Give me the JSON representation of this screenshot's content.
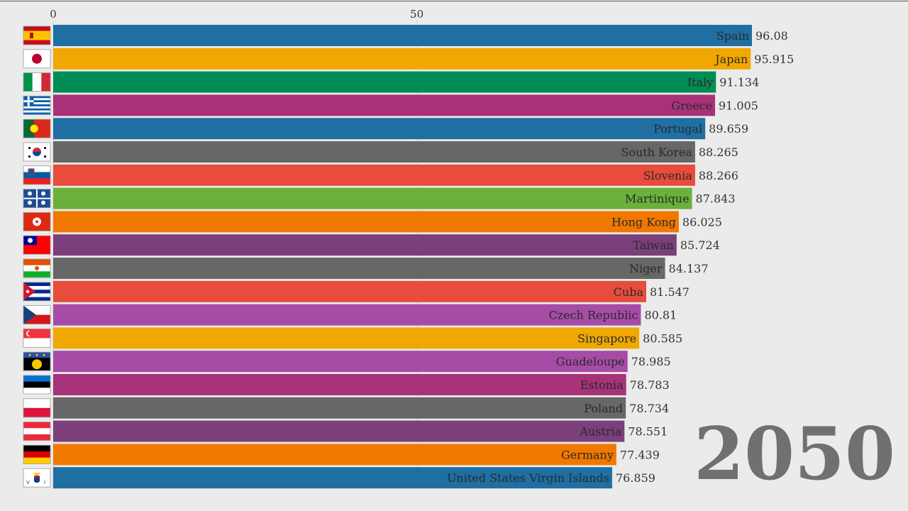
{
  "chart_data": {
    "type": "bar",
    "orientation": "horizontal",
    "year": "2050",
    "x_ticks": [
      0,
      50
    ],
    "xlim": [
      0,
      96.08
    ],
    "bars": [
      {
        "name": "Spain",
        "value": 96.08,
        "value_label": "96.08",
        "color": "#1f6fa3",
        "flag": "flag-spain-icon"
      },
      {
        "name": "Japan",
        "value": 95.915,
        "value_label": "95.915",
        "color": "#f0a800",
        "flag": "flag-japan-icon"
      },
      {
        "name": "Italy",
        "value": 91.134,
        "value_label": "91.134",
        "color": "#008d55",
        "flag": "flag-italy-icon"
      },
      {
        "name": "Greece",
        "value": 91.005,
        "value_label": "91.005",
        "color": "#a83279",
        "flag": "flag-greece-icon"
      },
      {
        "name": "Portugal",
        "value": 89.659,
        "value_label": "89.659",
        "color": "#1f6fa3",
        "flag": "flag-portugal-icon"
      },
      {
        "name": "South Korea",
        "value": 88.265,
        "value_label": "88.265",
        "color": "#676767",
        "flag": "flag-south-korea-icon"
      },
      {
        "name": "Slovenia",
        "value": 88.266,
        "value_label": "88.266",
        "color": "#e74c3c",
        "flag": "flag-slovenia-icon"
      },
      {
        "name": "Martinique",
        "value": 87.843,
        "value_label": "87.843",
        "color": "#6ab03a",
        "flag": "flag-martinique-icon"
      },
      {
        "name": "Hong Kong",
        "value": 86.025,
        "value_label": "86.025",
        "color": "#f07800",
        "flag": "flag-hong-kong-icon"
      },
      {
        "name": "Taiwan",
        "value": 85.724,
        "value_label": "85.724",
        "color": "#7b3f7b",
        "flag": "flag-taiwan-icon"
      },
      {
        "name": "Niger",
        "value": 84.137,
        "value_label": "84.137",
        "color": "#676767",
        "flag": "flag-niger-icon"
      },
      {
        "name": "Cuba",
        "value": 81.547,
        "value_label": "81.547",
        "color": "#e74c3c",
        "flag": "flag-cuba-icon"
      },
      {
        "name": "Czech Republic",
        "value": 80.81,
        "value_label": "80.81",
        "color": "#a64ca6",
        "flag": "flag-czech-republic-icon"
      },
      {
        "name": "Singapore",
        "value": 80.585,
        "value_label": "80.585",
        "color": "#f0a800",
        "flag": "flag-singapore-icon"
      },
      {
        "name": "Guadeloupe",
        "value": 78.985,
        "value_label": "78.985",
        "color": "#a64ca6",
        "flag": "flag-guadeloupe-icon"
      },
      {
        "name": "Estonia",
        "value": 78.783,
        "value_label": "78.783",
        "color": "#a83279",
        "flag": "flag-estonia-icon"
      },
      {
        "name": "Poland",
        "value": 78.734,
        "value_label": "78.734",
        "color": "#676767",
        "flag": "flag-poland-icon"
      },
      {
        "name": "Austria",
        "value": 78.551,
        "value_label": "78.551",
        "color": "#7b3f7b",
        "flag": "flag-austria-icon"
      },
      {
        "name": "Germany",
        "value": 77.439,
        "value_label": "77.439",
        "color": "#f07800",
        "flag": "flag-germany-icon"
      },
      {
        "name": "United States Virgin Islands",
        "value": 76.859,
        "value_label": "76.859",
        "color": "#1f6fa3",
        "flag": "flag-us-virgin-islands-icon"
      }
    ]
  }
}
